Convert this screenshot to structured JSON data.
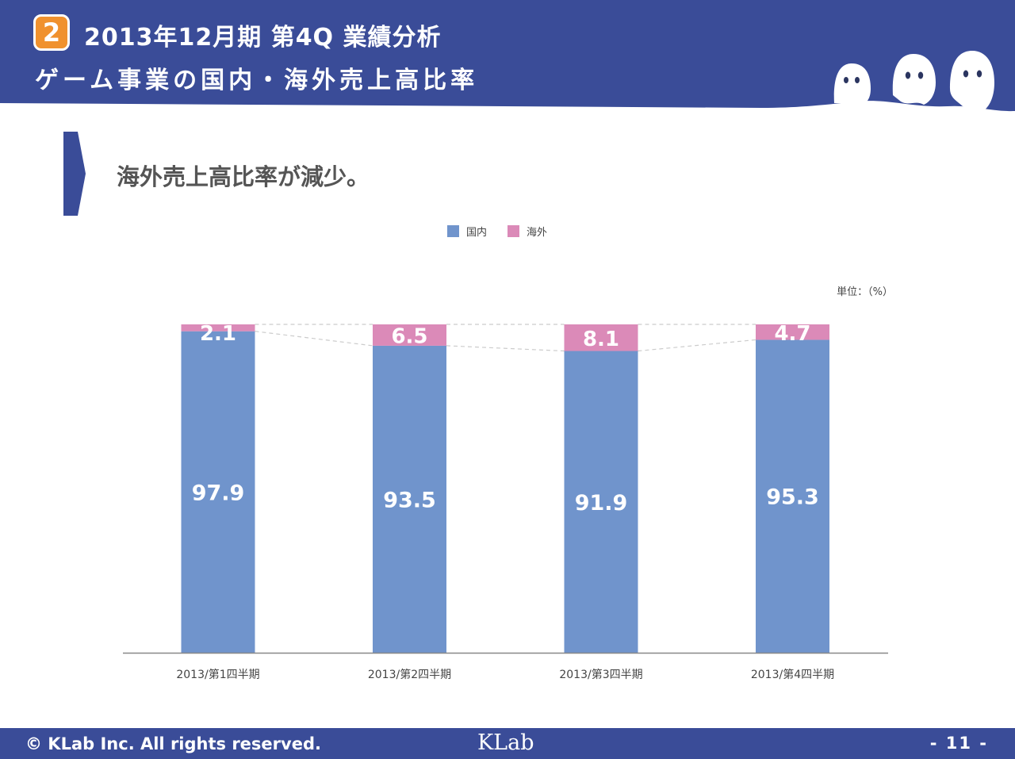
{
  "header": {
    "section_number": "2",
    "title": "2013年12月期 第4Q 業績分析",
    "subtitle": "ゲーム事業の国内・海外売上高比率",
    "band_color": "#3a4c98",
    "mascot": "ghost-mascots"
  },
  "headline": "海外売上高比率が減少。",
  "legend": [
    {
      "name": "国内",
      "color": "#7094cc"
    },
    {
      "name": "海外",
      "color": "#db8ab8"
    }
  ],
  "unit_label": "単位：（%）",
  "chart_data": {
    "type": "bar",
    "stacked": true,
    "categories": [
      "2013/第1四半期",
      "2013/第2四半期",
      "2013/第3四半期",
      "2013/第4四半期"
    ],
    "series": [
      {
        "name": "国内",
        "color": "#7094cc",
        "values": [
          97.9,
          93.5,
          91.9,
          95.3
        ],
        "labels": [
          "97.9",
          "93.5",
          "91.9",
          "95.3"
        ]
      },
      {
        "name": "海外",
        "color": "#db8ab8",
        "values": [
          2.1,
          6.5,
          8.1,
          4.7
        ],
        "labels": [
          "2.1",
          "6.5",
          "8.1",
          "4.7"
        ]
      }
    ],
    "ylim": [
      0,
      100
    ],
    "grid": false,
    "legend_position": "top-center",
    "series_lines": "dashed connectors between stack boundaries"
  },
  "footer": {
    "copyright": "© KLab Inc. All rights reserved.",
    "logo": "KLab",
    "page": "- 11 -"
  }
}
